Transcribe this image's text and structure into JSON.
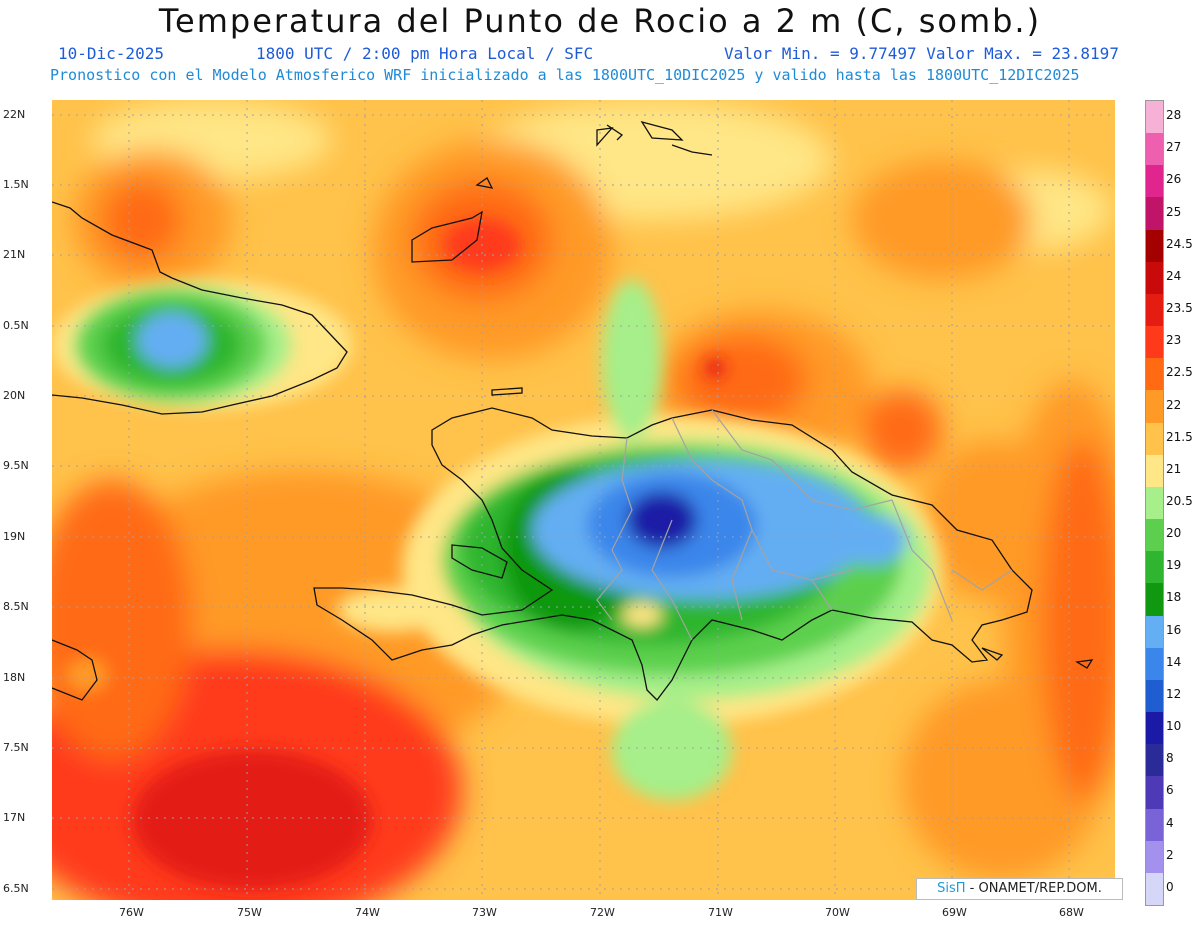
{
  "header": {
    "title": "Temperatura del Punto de Rocio a 2 m (C, somb.)",
    "date": "10-Dic-2025",
    "time": "1800 UTC / 2:00 pm Hora Local / SFC",
    "minmax": "Valor Min. = 9.77497  Valor Max. = 23.8197",
    "model_line": "Pronostico con el Modelo Atmosferico WRF inicializado a las 1800UTC_10DIC2025 y valido hasta las  1800UTC_12DIC2025"
  },
  "axes": {
    "lat_labels": [
      "22N",
      "1.5N",
      "21N",
      "0.5N",
      "20N",
      "9.5N",
      "19N",
      "8.5N",
      "18N",
      "7.5N",
      "17N",
      "6.5N"
    ],
    "lon_labels": [
      "76W",
      "75W",
      "74W",
      "73W",
      "72W",
      "71W",
      "70W",
      "69W",
      "68W"
    ]
  },
  "colorbar": {
    "labels": [
      "28",
      "27",
      "26",
      "25",
      "24.5",
      "24",
      "23.5",
      "23",
      "22.5",
      "22",
      "21.5",
      "21",
      "20.5",
      "20",
      "19",
      "18",
      "16",
      "14",
      "12",
      "10",
      "8",
      "6",
      "4",
      "2",
      "0"
    ],
    "colors": [
      "#f7b1d6",
      "#ef5fb0",
      "#e0258e",
      "#c01469",
      "#a50000",
      "#c80a0a",
      "#e41c12",
      "#ff3a1a",
      "#ff6a12",
      "#ff9a26",
      "#ffc24a",
      "#ffe686",
      "#a6ef8a",
      "#5cd04e",
      "#2fb52f",
      "#119811",
      "#64aef3",
      "#3a86ea",
      "#1f5ed0",
      "#1a1aa6",
      "#2a2a98",
      "#4e3ab6",
      "#7a63d6",
      "#a491ee",
      "#d6d6f8"
    ]
  },
  "credit": {
    "brand": "SisΠ",
    "text": "- ONAMET/REP.DOM."
  },
  "colors": {
    "title": "#111111",
    "subtitle_blue": "#1e5bd8",
    "model_blue": "#1e8bd8"
  }
}
